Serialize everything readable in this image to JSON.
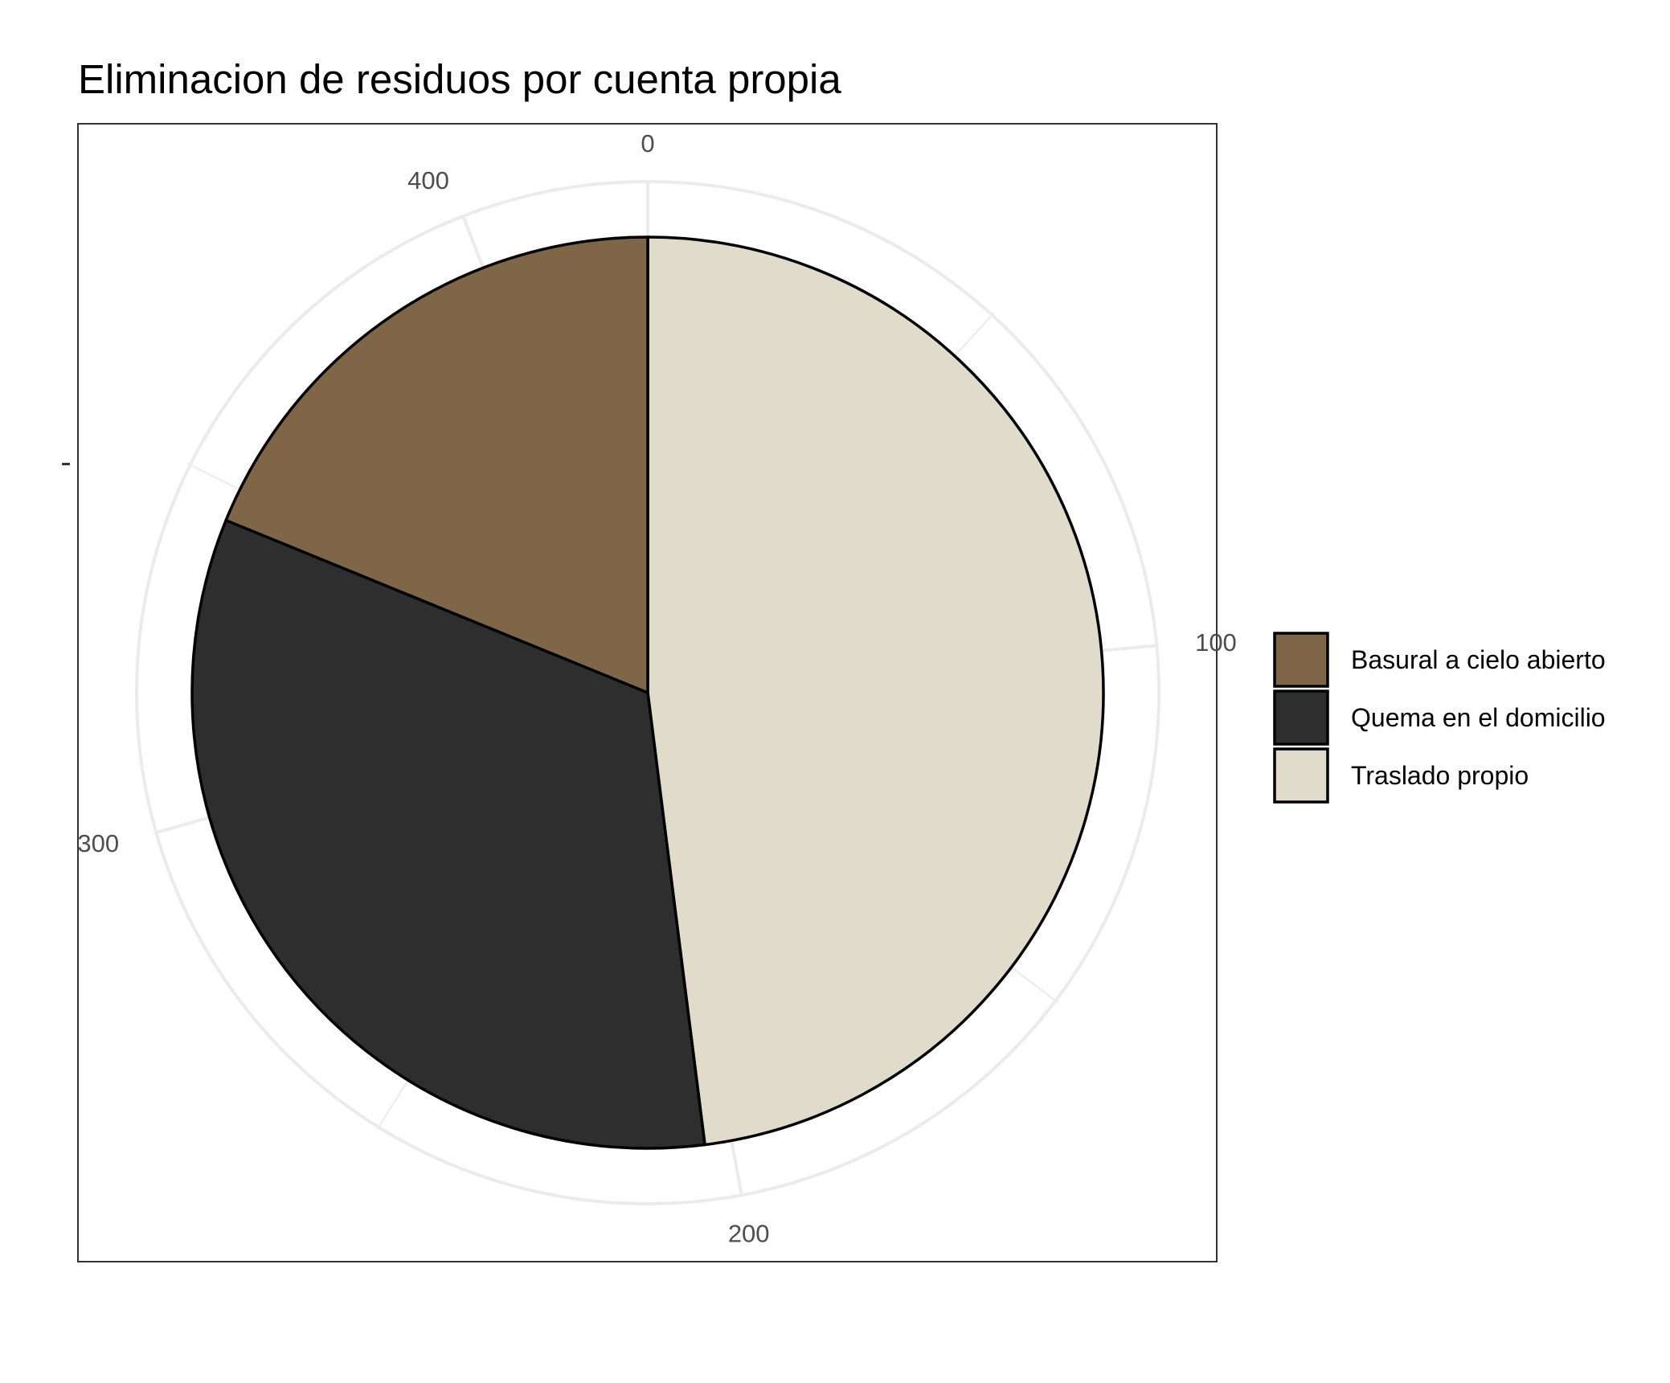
{
  "chart_data": {
    "type": "pie",
    "title": "Eliminacion de residuos por cuenta propia",
    "categories": [
      "Basural a cielo abierto",
      "Quema en el domicilio",
      "Traslado propio"
    ],
    "values": [
      80,
      141,
      204
    ],
    "colors": [
      "#7f6647",
      "#2e2e2e",
      "#e0dbcb"
    ],
    "stack_order": [
      "Traslado propio",
      "Quema en el domicilio",
      "Basural a cielo abierto"
    ],
    "angular_axis": {
      "ticks": [
        0,
        100,
        200,
        300,
        400
      ],
      "range": [
        0,
        425
      ]
    },
    "y_tick_label": "-",
    "legend": {
      "position": "right",
      "items": [
        {
          "label": "Basural a cielo abierto",
          "color": "#7f6647"
        },
        {
          "label": "Quema en el domicilio",
          "color": "#2e2e2e"
        },
        {
          "label": "Traslado propio",
          "color": "#e0dbcb"
        }
      ]
    },
    "grid": true
  }
}
